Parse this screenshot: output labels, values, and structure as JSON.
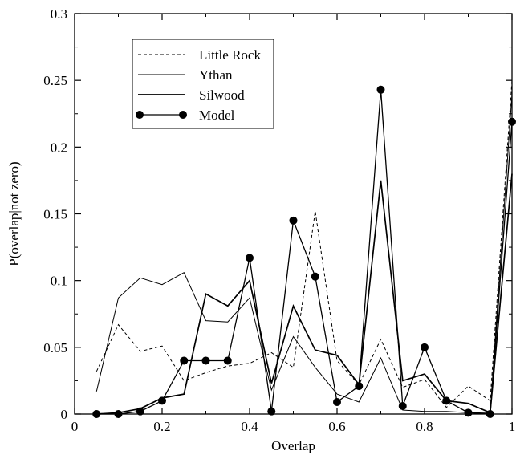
{
  "chart_data": {
    "type": "line",
    "title": "",
    "xlabel": "Overlap",
    "ylabel": "P(overlap|not zero)",
    "xlim": [
      0,
      1
    ],
    "ylim": [
      0,
      0.3
    ],
    "xticks": [
      0,
      0.2,
      0.4,
      0.6,
      0.8,
      1
    ],
    "xtick_labels": [
      "0",
      "0.2",
      "0.4",
      "0.6",
      "0.8",
      "1"
    ],
    "yticks": [
      0,
      0.05,
      0.1,
      0.15,
      0.2,
      0.25,
      0.3
    ],
    "ytick_labels": [
      "0",
      "0.05",
      "0.1",
      "0.15",
      "0.2",
      "0.25",
      "0.3"
    ],
    "grid": false,
    "legend_position": "top-left",
    "series": [
      {
        "name": "Little Rock",
        "style": "dashed",
        "color": "#000000",
        "x": [
          0.05,
          0.1,
          0.15,
          0.2,
          0.25,
          0.3,
          0.35,
          0.4,
          0.45,
          0.5,
          0.55,
          0.6,
          0.65,
          0.7,
          0.75,
          0.8,
          0.85,
          0.9,
          0.95,
          1.0
        ],
        "y": [
          0.032,
          0.067,
          0.047,
          0.051,
          0.025,
          0.031,
          0.036,
          0.038,
          0.046,
          0.035,
          0.152,
          0.04,
          0.022,
          0.056,
          0.02,
          0.026,
          0.005,
          0.021,
          0.01,
          0.25
        ]
      },
      {
        "name": "Ythan",
        "style": "solid-thin",
        "color": "#000000",
        "x": [
          0.05,
          0.1,
          0.15,
          0.2,
          0.25,
          0.3,
          0.35,
          0.4,
          0.45,
          0.5,
          0.55,
          0.6,
          0.65,
          0.7,
          0.75,
          0.8,
          0.85,
          0.9,
          0.95,
          1.0
        ],
        "y": [
          0.017,
          0.087,
          0.102,
          0.097,
          0.106,
          0.07,
          0.069,
          0.087,
          0.018,
          0.058,
          0.035,
          0.015,
          0.009,
          0.042,
          0.003,
          0.002,
          0.002,
          0.001,
          0.001,
          0.24
        ]
      },
      {
        "name": "Silwood",
        "style": "solid",
        "color": "#000000",
        "x": [
          0.05,
          0.1,
          0.15,
          0.2,
          0.25,
          0.3,
          0.35,
          0.4,
          0.45,
          0.5,
          0.55,
          0.6,
          0.65,
          0.7,
          0.75,
          0.8,
          0.85,
          0.9,
          0.95,
          1.0
        ],
        "y": [
          0.0,
          0.001,
          0.004,
          0.012,
          0.015,
          0.09,
          0.081,
          0.1,
          0.023,
          0.081,
          0.048,
          0.044,
          0.022,
          0.175,
          0.025,
          0.03,
          0.01,
          0.008,
          0.001,
          0.18
        ]
      },
      {
        "name": "Model",
        "style": "solid-markers",
        "color": "#000000",
        "x": [
          0.05,
          0.1,
          0.15,
          0.2,
          0.25,
          0.3,
          0.35,
          0.4,
          0.45,
          0.5,
          0.55,
          0.6,
          0.65,
          0.7,
          0.75,
          0.8,
          0.85,
          0.9,
          0.95,
          1.0
        ],
        "y": [
          0.0,
          0.0,
          0.002,
          0.01,
          0.04,
          0.04,
          0.04,
          0.117,
          0.002,
          0.145,
          0.103,
          0.009,
          0.021,
          0.243,
          0.006,
          0.05,
          0.01,
          0.001,
          0.0,
          0.219
        ]
      }
    ]
  }
}
